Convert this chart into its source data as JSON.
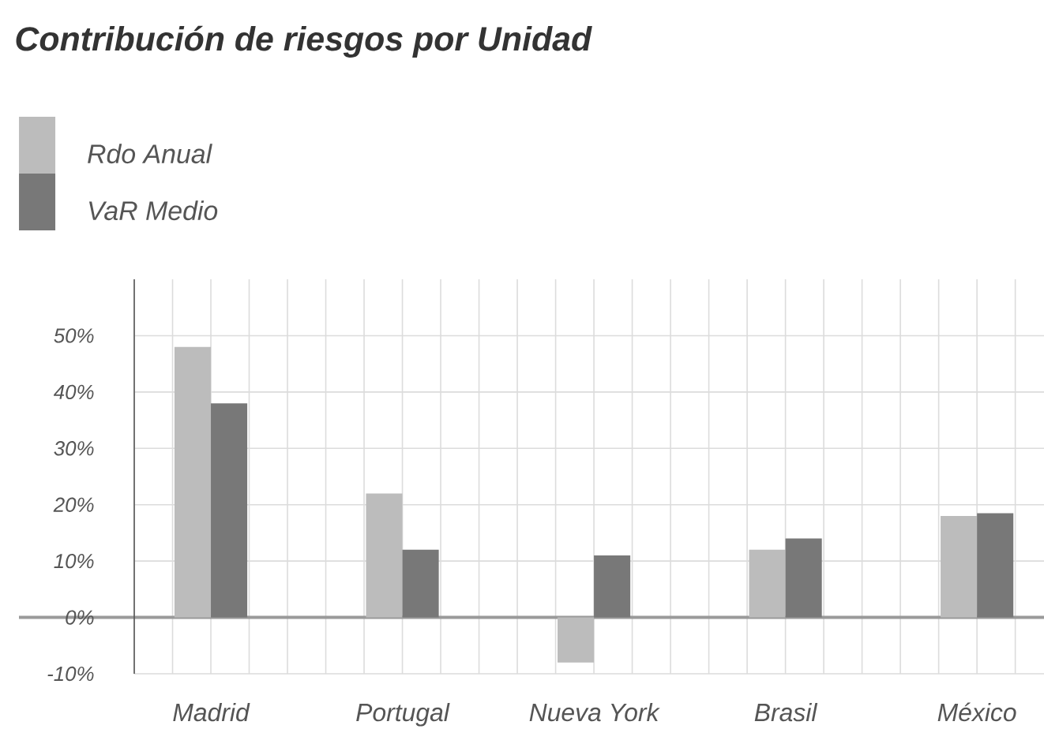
{
  "chart_data": {
    "type": "bar",
    "title": "Contribución de riesgos por Unidad",
    "categories": [
      "Madrid",
      "Portugal",
      "Nueva York",
      "Brasil",
      "México"
    ],
    "series": [
      {
        "name": "Rdo Anual",
        "color": "#bcbcbc",
        "values": [
          48,
          22,
          -8,
          12,
          18
        ]
      },
      {
        "name": "VaR Medio",
        "color": "#787878",
        "values": [
          38,
          12,
          11,
          14,
          18.5
        ]
      }
    ],
    "ylim": [
      -10,
      60
    ],
    "yticks": [
      {
        "value": -10,
        "label": "-10%"
      },
      {
        "value": 0,
        "label": "0%"
      },
      {
        "value": 10,
        "label": "10%"
      },
      {
        "value": 20,
        "label": "20%"
      },
      {
        "value": 30,
        "label": "30%"
      },
      {
        "value": 40,
        "label": "40%"
      },
      {
        "value": 50,
        "label": "50%"
      }
    ],
    "grid": true,
    "legend": "top left"
  }
}
